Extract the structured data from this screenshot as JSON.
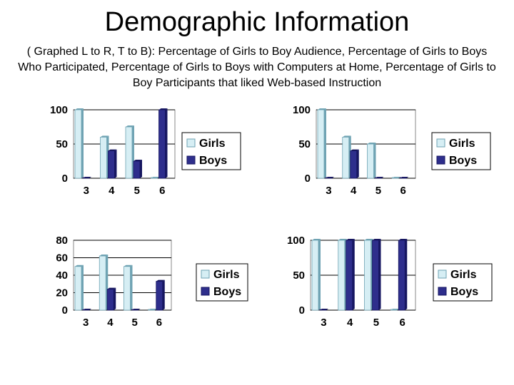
{
  "page": {
    "title": "Demographic Information",
    "subtitle": "( Graphed L to R, T to B): Percentage of Girls to Boy Audience, Percentage of Girls to Boys Who Participated, Percentage of Girls to Boys with Computers at Home, Percentage of Girls to Boy Participants that liked Web-based Instruction"
  },
  "colors": {
    "girls": "#d6eef4",
    "girls_edge": "#6fa3b3",
    "boys": "#2e2e8c",
    "boys_edge": "#161660",
    "grid": "#000000"
  },
  "chart_data": [
    {
      "type": "bar",
      "categories": [
        "3",
        "4",
        "5",
        "6"
      ],
      "series": [
        {
          "name": "Girls",
          "values": [
            100,
            60,
            75,
            0
          ]
        },
        {
          "name": "Boys",
          "values": [
            0,
            40,
            25,
            100
          ]
        }
      ],
      "ylim": [
        0,
        100
      ],
      "yticks": [
        0,
        50,
        100
      ],
      "grid": true,
      "legend": "right"
    },
    {
      "type": "bar",
      "categories": [
        "3",
        "4",
        "5",
        "6"
      ],
      "series": [
        {
          "name": "Girls",
          "values": [
            100,
            60,
            50,
            0
          ]
        },
        {
          "name": "Boys",
          "values": [
            0,
            40,
            0,
            0
          ]
        }
      ],
      "ylim": [
        0,
        100
      ],
      "yticks": [
        0,
        50,
        100
      ],
      "grid": true,
      "legend": "right"
    },
    {
      "type": "bar",
      "categories": [
        "3",
        "4",
        "5",
        "6"
      ],
      "series": [
        {
          "name": "Girls",
          "values": [
            50,
            62,
            50,
            0
          ]
        },
        {
          "name": "Boys",
          "values": [
            0,
            24,
            0,
            33
          ]
        }
      ],
      "ylim": [
        0,
        80
      ],
      "yticks": [
        0,
        20,
        40,
        60,
        80
      ],
      "grid": true,
      "legend": "right"
    },
    {
      "type": "bar",
      "categories": [
        "3",
        "4",
        "5",
        "6"
      ],
      "series": [
        {
          "name": "Girls",
          "values": [
            100,
            100,
            100,
            0
          ]
        },
        {
          "name": "Boys",
          "values": [
            0,
            100,
            100,
            100
          ]
        }
      ],
      "ylim": [
        0,
        100
      ],
      "yticks": [
        0,
        50,
        100
      ],
      "grid": true,
      "legend": "right"
    }
  ]
}
